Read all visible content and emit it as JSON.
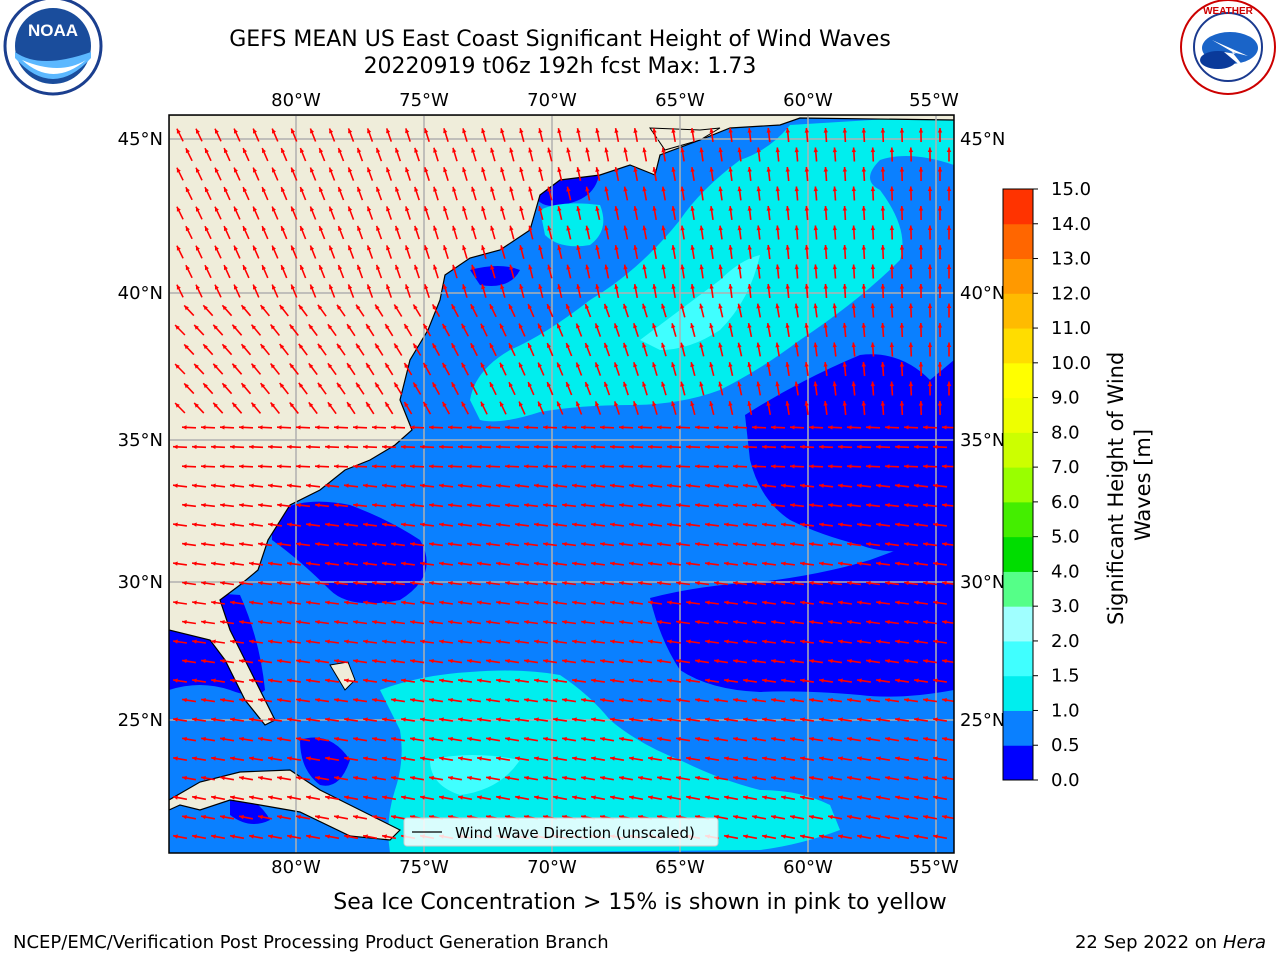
{
  "header": {
    "title_line1": "GEFS MEAN US East Coast Significant Height of Wind Waves",
    "title_line2": "20220919 t06z 192h fcst   Max: 1.73"
  },
  "logos": {
    "left": {
      "name": "noaa-logo",
      "text": "NOAA",
      "ring_text": "NATIONAL OCEANIC AND ATMOSPHERIC ADMINISTRATION · U.S. DEPARTMENT OF COMMERCE"
    },
    "right": {
      "name": "nws-logo",
      "ring_text": "NATIONAL WEATHER SERVICE"
    }
  },
  "map": {
    "lon_labels": [
      "80°W",
      "75°W",
      "70°W",
      "65°W",
      "60°W",
      "55°W"
    ],
    "lat_labels": [
      "45°N",
      "40°N",
      "35°N",
      "30°N",
      "25°N"
    ],
    "legend_label": "Wind Wave Direction (unscaled)",
    "colors": {
      "land": "#efedda",
      "arrows": "#ff0000",
      "grid": "#b0b0b0"
    }
  },
  "colorbar": {
    "label": "Significant Height of Wind Waves [m]",
    "ticks": [
      "0.0",
      "0.5",
      "1.0",
      "1.5",
      "2.0",
      "3.0",
      "4.0",
      "5.0",
      "6.0",
      "7.0",
      "8.0",
      "9.0",
      "10.0",
      "11.0",
      "12.0",
      "13.0",
      "14.0",
      "15.0"
    ],
    "colors": [
      "#0000ff",
      "#0a80ff",
      "#00eeee",
      "#40ffff",
      "#a0ffff",
      "#55ff88",
      "#00dd00",
      "#44ee00",
      "#99ff00",
      "#ccff00",
      "#eeff00",
      "#ffff00",
      "#ffdd00",
      "#ffbb00",
      "#ff9900",
      "#ff6600",
      "#ff3300",
      "#ff0000"
    ]
  },
  "footer": {
    "ice_note": "Sea Ice Concentration > 15% is shown in pink to yellow",
    "left": "NCEP/EMC/Verification Post Processing Product Generation Branch",
    "right_date": "22 Sep 2022 on",
    "right_host": "Hera"
  }
}
